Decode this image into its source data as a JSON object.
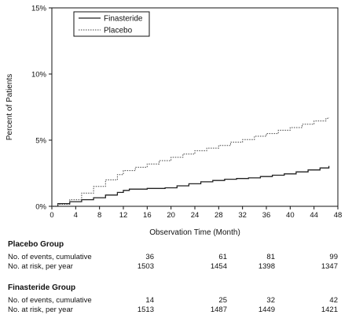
{
  "chart_data": {
    "type": "line",
    "xlabel": "Observation Time (Month)",
    "ylabel": "Percent of Patients",
    "xlim": [
      0,
      48
    ],
    "ylim": [
      0,
      15
    ],
    "x_ticks": [
      "0",
      "4",
      "8",
      "12",
      "16",
      "20",
      "24",
      "28",
      "32",
      "36",
      "40",
      "44",
      "48"
    ],
    "y_ticks": [
      "0%",
      "5%",
      "10%",
      "15%"
    ],
    "legend": "top-left",
    "series": [
      {
        "name": "Finasteride",
        "style": "solid",
        "color": "#222222",
        "points": [
          [
            0,
            0
          ],
          [
            1,
            0.2
          ],
          [
            3,
            0.35
          ],
          [
            5,
            0.5
          ],
          [
            7,
            0.65
          ],
          [
            9,
            0.85
          ],
          [
            11,
            1.05
          ],
          [
            12,
            1.2
          ],
          [
            13,
            1.3
          ],
          [
            16,
            1.35
          ],
          [
            19,
            1.4
          ],
          [
            21,
            1.55
          ],
          [
            23,
            1.7
          ],
          [
            25,
            1.85
          ],
          [
            27,
            1.95
          ],
          [
            29,
            2.05
          ],
          [
            31,
            2.1
          ],
          [
            33,
            2.15
          ],
          [
            35,
            2.25
          ],
          [
            37,
            2.35
          ],
          [
            39,
            2.45
          ],
          [
            41,
            2.6
          ],
          [
            43,
            2.75
          ],
          [
            45,
            2.9
          ],
          [
            46.5,
            3.05
          ]
        ]
      },
      {
        "name": "Placebo",
        "style": "dotted",
        "color": "#444444",
        "points": [
          [
            0,
            0
          ],
          [
            1,
            0.15
          ],
          [
            3,
            0.5
          ],
          [
            5,
            1.0
          ],
          [
            7,
            1.5
          ],
          [
            9,
            2.0
          ],
          [
            11,
            2.4
          ],
          [
            12,
            2.7
          ],
          [
            14,
            2.95
          ],
          [
            16,
            3.2
          ],
          [
            18,
            3.45
          ],
          [
            20,
            3.7
          ],
          [
            22,
            3.95
          ],
          [
            24,
            4.2
          ],
          [
            26,
            4.4
          ],
          [
            28,
            4.6
          ],
          [
            30,
            4.85
          ],
          [
            32,
            5.05
          ],
          [
            34,
            5.3
          ],
          [
            36,
            5.5
          ],
          [
            38,
            5.75
          ],
          [
            40,
            5.95
          ],
          [
            42,
            6.2
          ],
          [
            44,
            6.45
          ],
          [
            46,
            6.65
          ],
          [
            46.5,
            6.7
          ]
        ]
      }
    ]
  },
  "risk_table": {
    "groups": [
      {
        "title": "Placebo Group",
        "rows": [
          {
            "label": "No. of events, cumulative",
            "values": [
              "36",
              "61",
              "81",
              "99"
            ]
          },
          {
            "label": "No. at risk, per year",
            "values": [
              "1503",
              "1454",
              "1398",
              "1347"
            ]
          }
        ]
      },
      {
        "title": "Finasteride Group",
        "rows": [
          {
            "label": "No. of events, cumulative",
            "values": [
              "14",
              "25",
              "32",
              "42"
            ]
          },
          {
            "label": "No. at risk, per year",
            "values": [
              "1513",
              "1487",
              "1449",
              "1421"
            ]
          }
        ]
      }
    ]
  }
}
